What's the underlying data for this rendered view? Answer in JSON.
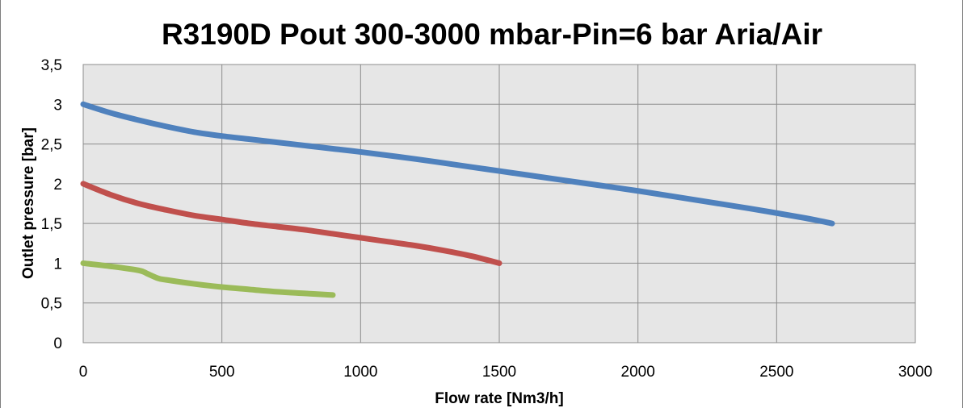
{
  "chart_data": {
    "type": "line",
    "title": "R3190D Pout 300-3000 mbar-Pin=6 bar Aria/Air",
    "xlabel": "Flow rate [Nm3/h]",
    "ylabel": "Outlet pressure [bar]",
    "xlim": [
      0,
      3000
    ],
    "ylim": [
      0,
      3.5
    ],
    "x_ticks": [
      "0",
      "500",
      "1000",
      "1500",
      "2000",
      "2500",
      "3000"
    ],
    "y_ticks": [
      "0",
      "0,5",
      "1",
      "1,5",
      "2",
      "2,5",
      "3",
      "3,5"
    ],
    "grid": true,
    "legend": "none",
    "colors": {
      "plot_background": "#e6e6e6",
      "grid": "#8c8c8c",
      "series_blue": "#4f81bd",
      "series_red": "#c0504d",
      "series_green": "#9bbb59"
    },
    "series": [
      {
        "color": "#4f81bd",
        "x": [
          0,
          100,
          200,
          300,
          400,
          500,
          600,
          700,
          800,
          900,
          1000,
          1200,
          1400,
          1500,
          1600,
          1800,
          2000,
          2200,
          2400,
          2600,
          2700
        ],
        "y": [
          3.0,
          2.89,
          2.8,
          2.72,
          2.65,
          2.6,
          2.56,
          2.52,
          2.48,
          2.44,
          2.4,
          2.31,
          2.21,
          2.16,
          2.11,
          2.01,
          1.91,
          1.8,
          1.69,
          1.57,
          1.5
        ]
      },
      {
        "color": "#c0504d",
        "x": [
          0,
          100,
          200,
          300,
          400,
          500,
          600,
          700,
          800,
          900,
          1000,
          1100,
          1200,
          1300,
          1400,
          1500
        ],
        "y": [
          2.0,
          1.86,
          1.75,
          1.67,
          1.6,
          1.55,
          1.5,
          1.46,
          1.42,
          1.37,
          1.32,
          1.27,
          1.22,
          1.16,
          1.09,
          1.0
        ]
      },
      {
        "color": "#9bbb59",
        "x": [
          0,
          100,
          200,
          230,
          270,
          300,
          400,
          500,
          600,
          700,
          800,
          900
        ],
        "y": [
          1.0,
          0.96,
          0.91,
          0.87,
          0.81,
          0.79,
          0.74,
          0.7,
          0.67,
          0.64,
          0.62,
          0.6
        ]
      }
    ]
  }
}
